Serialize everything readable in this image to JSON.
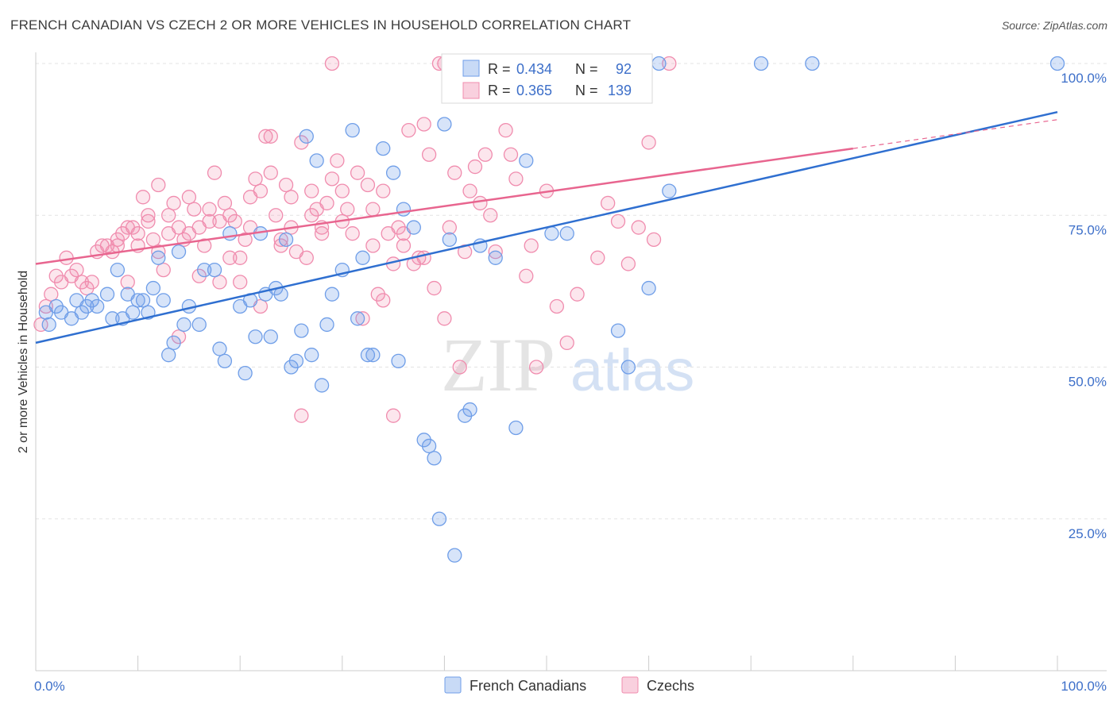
{
  "title": "FRENCH CANADIAN VS CZECH 2 OR MORE VEHICLES IN HOUSEHOLD CORRELATION CHART",
  "source": "Source: ZipAtlas.com",
  "watermark": {
    "zip": "ZIP",
    "atlas": "atlas"
  },
  "legend": {
    "r_label": "R =",
    "n_label": "N =",
    "entries": [
      {
        "r": "0.434",
        "n": "92",
        "color": "#6f9ee8"
      },
      {
        "r": "0.365",
        "n": "139",
        "color": "#f08cae"
      }
    ]
  },
  "colors": {
    "blue": "#6f9ee8",
    "blue_line": "#2f6fd0",
    "pink": "#f08cae",
    "pink_line": "#e8658f",
    "tick": "#3d6fc9"
  },
  "chart_data": {
    "type": "scatter",
    "title": "FRENCH CANADIAN VS CZECH 2 OR MORE VEHICLES IN HOUSEHOLD CORRELATION CHART",
    "xlabel": "",
    "ylabel": "2 or more Vehicles in Household",
    "xlim": [
      0,
      100
    ],
    "ylim": [
      0,
      100
    ],
    "x_tick_labels": [
      "0.0%",
      "100.0%"
    ],
    "y_ticks": [
      25,
      50,
      75,
      100
    ],
    "y_tick_labels": [
      "25.0%",
      "50.0%",
      "75.0%",
      "100.0%"
    ],
    "grid": true,
    "legend_position": "top-center",
    "series": [
      {
        "name": "French Canadians",
        "color": "#6f9ee8",
        "trend": {
          "x": [
            0,
            100
          ],
          "y": [
            54,
            92
          ]
        },
        "points": [
          [
            1,
            59
          ],
          [
            1.3,
            57
          ],
          [
            2,
            60
          ],
          [
            2.5,
            59
          ],
          [
            3.5,
            58
          ],
          [
            4,
            61
          ],
          [
            4.5,
            59
          ],
          [
            5,
            60
          ],
          [
            5.5,
            61
          ],
          [
            6,
            60
          ],
          [
            7,
            62
          ],
          [
            7.5,
            58
          ],
          [
            8,
            66
          ],
          [
            8.5,
            58
          ],
          [
            9,
            62
          ],
          [
            9.5,
            59
          ],
          [
            10,
            61
          ],
          [
            10.5,
            61
          ],
          [
            11,
            59
          ],
          [
            11.5,
            63
          ],
          [
            12,
            68
          ],
          [
            12.5,
            61
          ],
          [
            13,
            52
          ],
          [
            13.5,
            54
          ],
          [
            14,
            69
          ],
          [
            14.5,
            57
          ],
          [
            15,
            60
          ],
          [
            16,
            57
          ],
          [
            16.5,
            66
          ],
          [
            17.5,
            66
          ],
          [
            18,
            53
          ],
          [
            18.5,
            51
          ],
          [
            19,
            72
          ],
          [
            20,
            60
          ],
          [
            20.5,
            49
          ],
          [
            21,
            61
          ],
          [
            21.5,
            55
          ],
          [
            22,
            72
          ],
          [
            22.5,
            62
          ],
          [
            23,
            55
          ],
          [
            23.5,
            63
          ],
          [
            24,
            62
          ],
          [
            24.5,
            71
          ],
          [
            25,
            50
          ],
          [
            25.5,
            51
          ],
          [
            26,
            56
          ],
          [
            26.5,
            88
          ],
          [
            27,
            52
          ],
          [
            27.5,
            84
          ],
          [
            28,
            47
          ],
          [
            28.5,
            57
          ],
          [
            29,
            62
          ],
          [
            30,
            66
          ],
          [
            31,
            89
          ],
          [
            31.5,
            58
          ],
          [
            32,
            68
          ],
          [
            32.5,
            52
          ],
          [
            33,
            52
          ],
          [
            34,
            86
          ],
          [
            35,
            82
          ],
          [
            35.5,
            51
          ],
          [
            36,
            76
          ],
          [
            37,
            73
          ],
          [
            38,
            38
          ],
          [
            38.5,
            37
          ],
          [
            39,
            35
          ],
          [
            40,
            90
          ],
          [
            39.5,
            25
          ],
          [
            40.5,
            71
          ],
          [
            41,
            19
          ],
          [
            42,
            42
          ],
          [
            42.5,
            43
          ],
          [
            43.5,
            70
          ],
          [
            44,
            100
          ],
          [
            45,
            68
          ],
          [
            47,
            40
          ],
          [
            48,
            84
          ],
          [
            49,
            100
          ],
          [
            50,
            100
          ],
          [
            50.5,
            72
          ],
          [
            52,
            72
          ],
          [
            53,
            100
          ],
          [
            54,
            100
          ],
          [
            55,
            100
          ],
          [
            57,
            56
          ],
          [
            56,
            100
          ],
          [
            58,
            50
          ],
          [
            60,
            63
          ],
          [
            61,
            100
          ],
          [
            62,
            79
          ],
          [
            71,
            100
          ],
          [
            76,
            100
          ],
          [
            100,
            100
          ]
        ]
      },
      {
        "name": "Czechs",
        "color": "#f08cae",
        "trend": {
          "x": [
            0,
            80
          ],
          "y": [
            67,
            86
          ]
        },
        "points": [
          [
            0.5,
            57
          ],
          [
            1,
            60
          ],
          [
            1.5,
            62
          ],
          [
            2,
            65
          ],
          [
            2.5,
            64
          ],
          [
            3,
            68
          ],
          [
            3.5,
            65
          ],
          [
            4,
            66
          ],
          [
            4.5,
            64
          ],
          [
            5,
            63
          ],
          [
            5.5,
            64
          ],
          [
            6,
            69
          ],
          [
            6.5,
            70
          ],
          [
            7,
            70
          ],
          [
            7.5,
            69
          ],
          [
            8,
            71
          ],
          [
            8.5,
            72
          ],
          [
            9,
            64
          ],
          [
            9.5,
            73
          ],
          [
            10,
            70
          ],
          [
            10.5,
            78
          ],
          [
            11,
            75
          ],
          [
            11.5,
            71
          ],
          [
            12,
            69
          ],
          [
            12.5,
            66
          ],
          [
            13,
            72
          ],
          [
            13.5,
            77
          ],
          [
            14,
            73
          ],
          [
            14.5,
            71
          ],
          [
            15,
            78
          ],
          [
            15.5,
            76
          ],
          [
            16,
            65
          ],
          [
            16.5,
            70
          ],
          [
            17,
            74
          ],
          [
            17.5,
            82
          ],
          [
            18,
            64
          ],
          [
            18.5,
            77
          ],
          [
            19,
            68
          ],
          [
            19.5,
            74
          ],
          [
            20,
            68
          ],
          [
            20.5,
            71
          ],
          [
            21,
            78
          ],
          [
            21.5,
            81
          ],
          [
            22,
            79
          ],
          [
            22.5,
            88
          ],
          [
            23,
            88
          ],
          [
            23.5,
            75
          ],
          [
            24,
            70
          ],
          [
            24.5,
            80
          ],
          [
            25,
            73
          ],
          [
            25.5,
            69
          ],
          [
            26,
            87
          ],
          [
            26.5,
            68
          ],
          [
            27,
            79
          ],
          [
            27.5,
            76
          ],
          [
            28,
            72
          ],
          [
            28.5,
            77
          ],
          [
            29,
            81
          ],
          [
            29.5,
            84
          ],
          [
            30,
            79
          ],
          [
            30.5,
            76
          ],
          [
            31,
            72
          ],
          [
            31.5,
            82
          ],
          [
            32,
            58
          ],
          [
            32.5,
            80
          ],
          [
            33,
            76
          ],
          [
            33.5,
            62
          ],
          [
            34,
            79
          ],
          [
            34.5,
            72
          ],
          [
            35,
            67
          ],
          [
            35.5,
            73
          ],
          [
            36,
            72
          ],
          [
            36.5,
            89
          ],
          [
            37,
            67
          ],
          [
            37.5,
            68
          ],
          [
            38,
            68
          ],
          [
            38.5,
            85
          ],
          [
            39,
            63
          ],
          [
            39.5,
            100
          ],
          [
            40,
            58
          ],
          [
            40.5,
            73
          ],
          [
            41,
            82
          ],
          [
            41.5,
            50
          ],
          [
            42,
            69
          ],
          [
            42.5,
            79
          ],
          [
            43,
            83
          ],
          [
            43.5,
            77
          ],
          [
            44,
            85
          ],
          [
            44.5,
            75
          ],
          [
            45,
            69
          ],
          [
            46,
            89
          ],
          [
            46.5,
            85
          ],
          [
            47,
            81
          ],
          [
            48,
            65
          ],
          [
            48.5,
            70
          ],
          [
            49,
            50
          ],
          [
            50,
            79
          ],
          [
            51,
            60
          ],
          [
            52,
            54
          ],
          [
            53,
            62
          ],
          [
            55,
            68
          ],
          [
            56,
            77
          ],
          [
            57,
            74
          ],
          [
            58,
            67
          ],
          [
            59,
            73
          ],
          [
            60,
            87
          ],
          [
            60.5,
            71
          ],
          [
            35,
            42
          ],
          [
            26,
            42
          ],
          [
            20,
            64
          ],
          [
            14,
            55
          ],
          [
            10,
            72
          ],
          [
            9,
            73
          ],
          [
            8,
            70
          ],
          [
            12,
            80
          ],
          [
            16,
            73
          ],
          [
            22,
            60
          ],
          [
            28,
            73
          ],
          [
            18,
            74
          ],
          [
            24,
            71
          ],
          [
            30,
            74
          ],
          [
            33,
            70
          ],
          [
            21,
            73
          ],
          [
            19,
            75
          ],
          [
            27,
            75
          ],
          [
            23,
            82
          ],
          [
            25,
            78
          ],
          [
            17,
            76
          ],
          [
            15,
            72
          ],
          [
            13,
            75
          ],
          [
            11,
            74
          ],
          [
            44,
            100
          ],
          [
            40,
            100
          ],
          [
            62,
            100
          ],
          [
            45,
            100
          ],
          [
            48,
            100
          ],
          [
            38,
            90
          ],
          [
            29,
            100
          ],
          [
            36,
            70
          ],
          [
            34,
            61
          ]
        ]
      }
    ]
  },
  "bottom_legend": [
    {
      "label": "French Canadians",
      "color": "#6f9ee8"
    },
    {
      "label": "Czechs",
      "color": "#f08cae"
    }
  ]
}
